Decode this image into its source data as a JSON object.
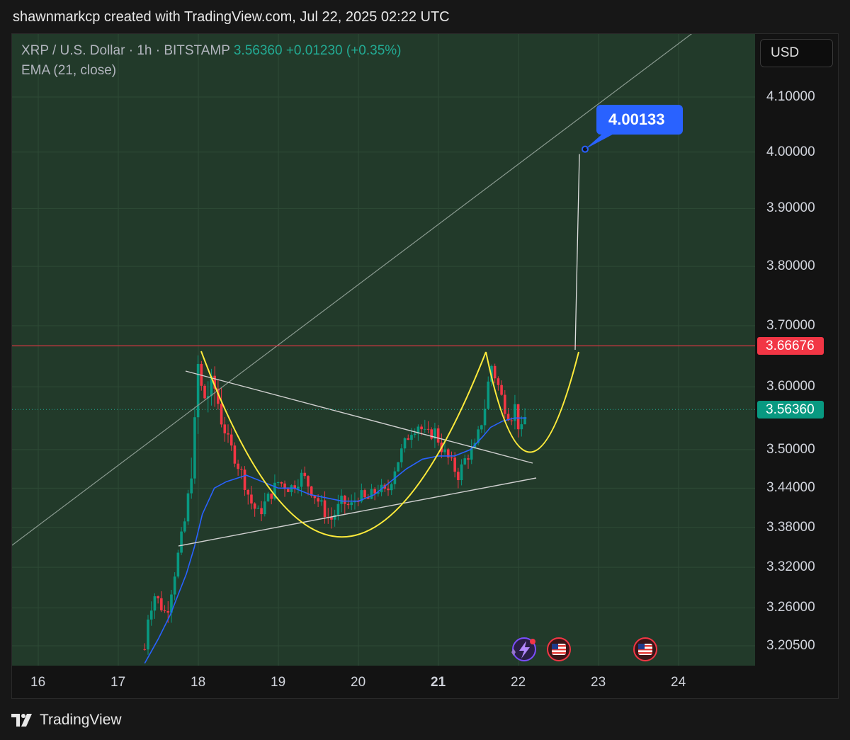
{
  "header": {
    "caption": "shawnmarkcp created with TradingView.com, Jul 22, 2025 02:22 UTC"
  },
  "legend": {
    "symbol": "XRP / U.S. Dollar · 1h · BITSTAMP",
    "last": "3.56360",
    "change": "+0.01230 (+0.35%)",
    "indicator": "EMA (21, close)"
  },
  "currency": "USD",
  "brand": "TradingView",
  "colors": {
    "background": "#223a2a",
    "up_candle": "#089981",
    "down_candle": "#f23645",
    "ema": "#2962ff",
    "pattern": "#ffeb3b",
    "resistance": "#f23645",
    "callout": "#2962ff"
  },
  "chart_data": {
    "type": "candlestick",
    "series": [
      {
        "name": "XRP / U.S. Dollar"
      },
      {
        "name": "EMA (21, close)"
      }
    ],
    "x_ticks": [
      "16",
      "17",
      "18",
      "19",
      "20",
      "21",
      "22",
      "23",
      "24"
    ],
    "y_ticks": [
      "4.10000",
      "4.00000",
      "3.90000",
      "3.80000",
      "3.70000",
      "3.60000",
      "3.50000",
      "3.44000",
      "3.38000",
      "3.32000",
      "3.26000",
      "3.20500"
    ],
    "y_tick_values": [
      4.1,
      4.0,
      3.9,
      3.8,
      3.7,
      3.6,
      3.5,
      3.44,
      3.38,
      3.32,
      3.26,
      3.205
    ],
    "y_scale": "log",
    "last_price": "3.56360",
    "last_price_value": 3.5636,
    "resistance": "3.66676",
    "resistance_value": 3.66676,
    "target": "4.00133",
    "target_value": 4.00133,
    "candles_path_days": [
      17.33,
      17.35,
      17.45,
      17.6,
      17.75,
      17.85,
      17.95,
      18.0,
      18.05,
      18.2,
      18.35,
      18.45,
      18.55,
      18.65,
      18.75,
      18.85,
      19.0,
      19.15,
      19.3,
      19.45,
      19.55,
      19.65,
      19.8,
      19.9,
      20.0,
      20.1,
      20.25,
      20.35,
      20.45,
      20.55,
      20.65,
      20.75,
      20.85,
      20.95,
      21.05,
      21.15,
      21.25,
      21.35,
      21.45,
      21.55,
      21.6,
      21.65,
      21.75,
      21.82,
      21.9,
      21.96,
      22.02,
      22.1
    ],
    "candles_path_prices": [
      3.2,
      3.24,
      3.28,
      3.25,
      3.34,
      3.4,
      3.52,
      3.64,
      3.58,
      3.6,
      3.52,
      3.49,
      3.46,
      3.42,
      3.4,
      3.42,
      3.45,
      3.44,
      3.46,
      3.43,
      3.41,
      3.39,
      3.42,
      3.41,
      3.43,
      3.42,
      3.44,
      3.43,
      3.47,
      3.5,
      3.53,
      3.54,
      3.52,
      3.53,
      3.5,
      3.48,
      3.46,
      3.49,
      3.5,
      3.55,
      3.58,
      3.64,
      3.6,
      3.57,
      3.55,
      3.57,
      3.52,
      3.56
    ],
    "ema_days": [
      17.33,
      17.5,
      17.65,
      17.75,
      17.85,
      17.95,
      18.05,
      18.2,
      18.35,
      18.6,
      18.8,
      19.0,
      19.2,
      19.4,
      19.6,
      19.8,
      20.0,
      20.2,
      20.4,
      20.6,
      20.8,
      21.0,
      21.2,
      21.4,
      21.55,
      21.65,
      21.8,
      21.95,
      22.1
    ],
    "ema_values": [
      3.18,
      3.215,
      3.25,
      3.28,
      3.31,
      3.35,
      3.4,
      3.44,
      3.45,
      3.46,
      3.45,
      3.44,
      3.44,
      3.43,
      3.425,
      3.42,
      3.42,
      3.43,
      3.45,
      3.47,
      3.485,
      3.49,
      3.49,
      3.5,
      3.52,
      3.535,
      3.545,
      3.55,
      3.55
    ]
  }
}
